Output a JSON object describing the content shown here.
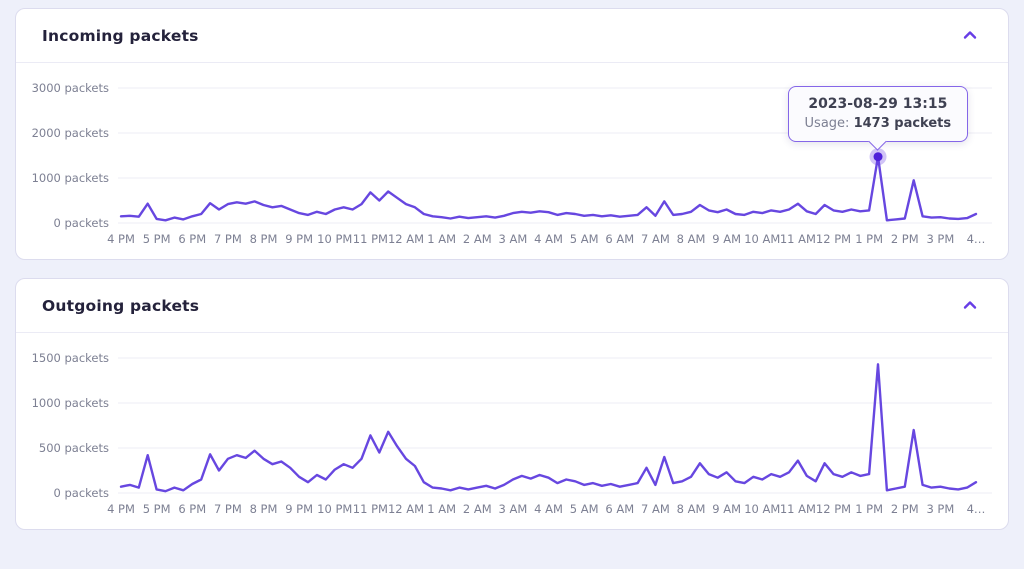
{
  "accent": "#673de6",
  "panels": [
    {
      "title": "Incoming packets",
      "collapse_icon": "chevron-up"
    },
    {
      "title": "Outgoing packets",
      "collapse_icon": "chevron-up"
    }
  ],
  "chart_data": [
    {
      "type": "line",
      "title": "Incoming packets",
      "unit": "packets",
      "line_color": "#6747e0",
      "marker_color": "#4f21d9",
      "marker_halo": "rgba(103,61,230,0.3)",
      "grid": true,
      "legend": "none",
      "ylim": [
        0,
        3000
      ],
      "y_ticks": [
        0,
        1000,
        2000,
        3000
      ],
      "y_tick_labels": [
        "0 packets",
        "1000 packets",
        "2000 packets",
        "3000 packets"
      ],
      "x_tick_labels": [
        "4 PM",
        "5 PM",
        "6 PM",
        "7 PM",
        "8 PM",
        "9 PM",
        "10 PM",
        "11 PM",
        "12 AM",
        "1 AM",
        "2 AM",
        "3 AM",
        "4 AM",
        "5 AM",
        "6 AM",
        "7 AM",
        "8 AM",
        "9 AM",
        "10 AM",
        "11 AM",
        "12 PM",
        "1 PM",
        "2 PM",
        "3 PM",
        "4…"
      ],
      "values": [
        150,
        160,
        140,
        430,
        90,
        60,
        120,
        80,
        150,
        200,
        440,
        300,
        420,
        460,
        430,
        480,
        400,
        350,
        380,
        300,
        220,
        180,
        250,
        200,
        300,
        350,
        300,
        420,
        680,
        500,
        700,
        560,
        420,
        350,
        200,
        150,
        130,
        100,
        140,
        110,
        130,
        150,
        120,
        160,
        220,
        250,
        230,
        260,
        240,
        180,
        220,
        200,
        160,
        180,
        150,
        170,
        140,
        160,
        180,
        350,
        160,
        480,
        180,
        200,
        250,
        400,
        280,
        240,
        300,
        200,
        180,
        250,
        220,
        280,
        250,
        300,
        430,
        260,
        200,
        400,
        280,
        250,
        300,
        260,
        280,
        1473,
        60,
        80,
        100,
        950,
        150,
        120,
        130,
        100,
        90,
        110,
        200
      ],
      "tooltip": {
        "date": "2023-08-29 13:15",
        "usage_label": "Usage:",
        "usage_value": "1473 packets",
        "point_index": 85
      }
    },
    {
      "type": "line",
      "title": "Outgoing packets",
      "unit": "packets",
      "line_color": "#6747e0",
      "grid": true,
      "legend": "none",
      "ylim": [
        0,
        1500
      ],
      "y_ticks": [
        0,
        500,
        1000,
        1500
      ],
      "y_tick_labels": [
        "0 packets",
        "500 packets",
        "1000 packets",
        "1500 packets"
      ],
      "x_tick_labels": [
        "4 PM",
        "5 PM",
        "6 PM",
        "7 PM",
        "8 PM",
        "9 PM",
        "10 PM",
        "11 PM",
        "12 AM",
        "1 AM",
        "2 AM",
        "3 AM",
        "4 AM",
        "5 AM",
        "6 AM",
        "7 AM",
        "8 AM",
        "9 AM",
        "10 AM",
        "11 AM",
        "12 PM",
        "1 PM",
        "2 PM",
        "3 PM",
        "4…"
      ],
      "values": [
        70,
        90,
        60,
        420,
        40,
        20,
        60,
        30,
        100,
        150,
        430,
        250,
        380,
        420,
        390,
        470,
        380,
        320,
        350,
        280,
        180,
        120,
        200,
        150,
        260,
        320,
        280,
        380,
        640,
        450,
        680,
        520,
        380,
        300,
        120,
        60,
        50,
        30,
        60,
        40,
        60,
        80,
        50,
        90,
        150,
        190,
        160,
        200,
        170,
        110,
        150,
        130,
        90,
        110,
        80,
        100,
        70,
        90,
        110,
        280,
        90,
        400,
        110,
        130,
        180,
        330,
        210,
        170,
        230,
        130,
        110,
        180,
        150,
        210,
        180,
        230,
        360,
        190,
        130,
        330,
        210,
        180,
        230,
        190,
        210,
        1430,
        30,
        50,
        70,
        700,
        90,
        60,
        70,
        50,
        40,
        60,
        120
      ]
    }
  ]
}
